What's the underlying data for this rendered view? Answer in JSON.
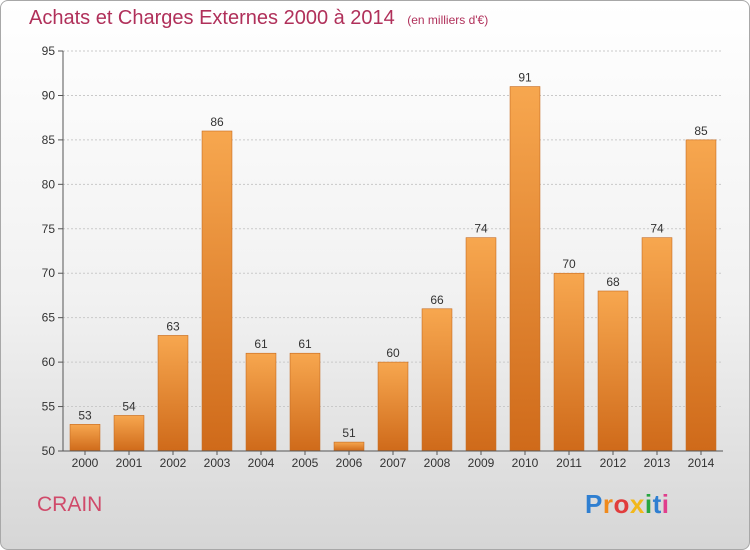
{
  "chart_data": {
    "type": "bar",
    "title": "Achats et Charges Externes 2000 à 2014",
    "subtitle": "(en milliers d'€)",
    "categories": [
      "2000",
      "2001",
      "2002",
      "2003",
      "2004",
      "2005",
      "2006",
      "2007",
      "2008",
      "2009",
      "2010",
      "2011",
      "2012",
      "2013",
      "2014"
    ],
    "values": [
      53,
      54,
      63,
      86,
      61,
      61,
      51,
      60,
      66,
      74,
      91,
      70,
      68,
      74,
      85
    ],
    "ylim": [
      50,
      95
    ],
    "yticks": [
      50,
      55,
      60,
      65,
      70,
      75,
      80,
      85,
      90,
      95
    ],
    "grid": true,
    "bar_color_top": "#f7a74f",
    "bar_color_bottom": "#cf6a1a"
  },
  "commune": "CRAIN",
  "logo": {
    "letters": [
      "P",
      "r",
      "o",
      "x",
      "i",
      "t",
      "i"
    ],
    "colors": [
      "#2f7fd1",
      "#f08a1c",
      "#e13d3d",
      "#f2b81b",
      "#27a63f",
      "#2f7fd1",
      "#e03e8c"
    ]
  }
}
